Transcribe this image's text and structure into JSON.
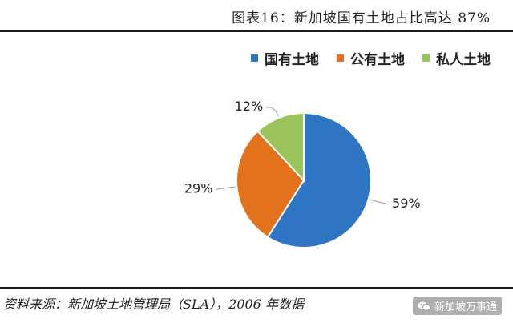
{
  "title": "图表16：新加坡国有土地占比高达 87%",
  "legend_position": "top-right",
  "colors": {
    "state_land": "#2e75c4",
    "public_land": "#e2721b",
    "private_land": "#9bc35c",
    "rule": "#1a1a1a"
  },
  "chart_data": {
    "type": "pie",
    "title": "图表16：新加坡国有土地占比高达 87%",
    "categories": [
      "国有土地",
      "公有土地",
      "私人土地"
    ],
    "values": [
      59,
      29,
      12
    ],
    "labels": [
      "59%",
      "29%",
      "12%"
    ],
    "colors": [
      "#2e75c4",
      "#e2721b",
      "#9bc35c"
    ],
    "start_angle_deg": 0,
    "direction": "clockwise",
    "legend": "top-right"
  },
  "source": "资料来源：新加坡土地管理局（SLA），2006 年数据",
  "watermark": {
    "icon": "wechat-icon",
    "text": "新加坡万事通"
  }
}
